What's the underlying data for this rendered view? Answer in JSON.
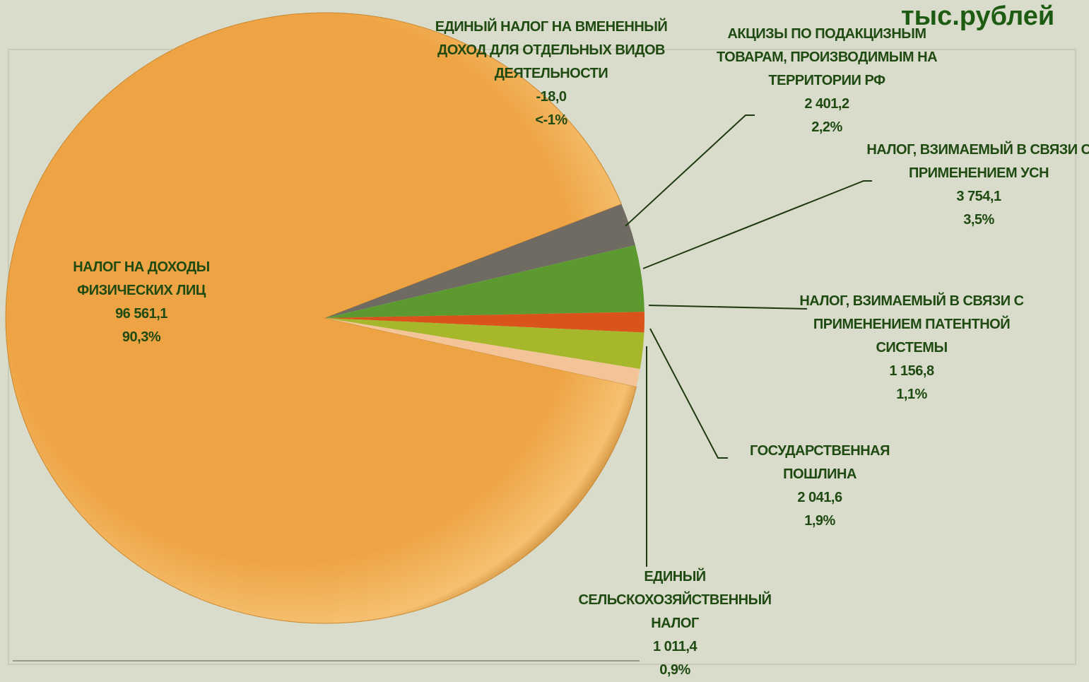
{
  "chart_data": {
    "type": "pie",
    "title": "тыс.рублей",
    "labels": [
      "НАЛОГ НА ДОХОДЫ ФИЗИЧЕСКИХ ЛИЦ",
      "АКЦИЗЫ ПО ПОДАКЦИЗНЫМ ТОВАРАМ, ПРОИЗВОДИМЫМ НА ТЕРРИТОРИИ РФ",
      "НАЛОГ, ВЗИМАЕМЫЙ В СВЯЗИ С ПРИМЕНЕНИЕМ УСН",
      "НАЛОГ, ВЗИМАЕМЫЙ В СВЯЗИ С ПРИМЕНЕНИЕМ ПАТЕНТНОЙ СИСТЕМЫ",
      "ГОСУДАРСТВЕННАЯ ПОШЛИНА",
      "ЕДИНЫЙ СЕЛЬСКОХОЗЯЙСТВЕННЫЙ НАЛОГ",
      "ЕДИНЫЙ НАЛОГ НА ВМЕНЕННЫЙ ДОХОД ДЛЯ ОТДЕЛЬНЫХ ВИДОВ ДЕЯТЕЛЬНОСТИ"
    ],
    "values": [
      96561.1,
      2401.2,
      3754.1,
      1156.8,
      2041.6,
      1011.4,
      -18.0
    ],
    "value_labels": [
      "96 561,1",
      "2 401,2",
      "3 754,1",
      "1 156,8",
      "2 041,6",
      "1 011,4",
      "-18,0"
    ],
    "percent_labels": [
      "90,3%",
      "2,2%",
      "3,5%",
      "1,1%",
      "1,9%",
      "0,9%",
      "<-1%"
    ],
    "colors": [
      "#eea444",
      "#6f6a62",
      "#5c9a30",
      "#d9531a",
      "#a7b72c",
      "#f2c497",
      "#b08585"
    ]
  }
}
